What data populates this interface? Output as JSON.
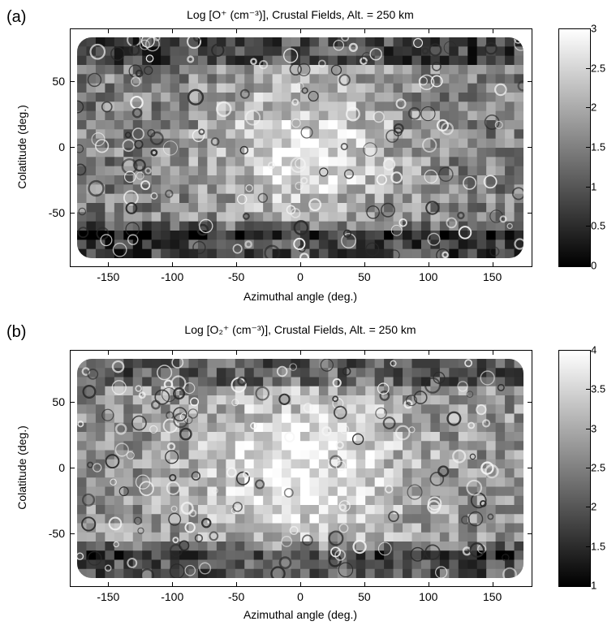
{
  "chart_data": [
    {
      "type": "heatmap",
      "panel_label": "(a)",
      "title": "Log [O⁺ (cm⁻³)], Crustal Fields, Alt. = 250 km",
      "xlabel": "Azimuthal angle (deg.)",
      "ylabel": "Colatitude (deg.)",
      "xlim": [
        -180,
        180
      ],
      "ylim": [
        -90,
        90
      ],
      "x_ticks": [
        -150,
        -100,
        -50,
        0,
        50,
        100,
        150
      ],
      "y_ticks": [
        50,
        0,
        -50
      ],
      "colorbar": {
        "min": 0,
        "max": 3,
        "ticks": [
          "3",
          "2.5",
          "2",
          "1.5",
          "1",
          "0.5",
          "0"
        ],
        "colormap": "gray"
      }
    },
    {
      "type": "heatmap",
      "panel_label": "(b)",
      "title": "Log [O₂⁺ (cm⁻³)], Crustal Fields, Alt. = 250 km",
      "xlabel": "Azimuthal angle (deg.)",
      "ylabel": "Colatitude (deg.)",
      "xlim": [
        -180,
        180
      ],
      "ylim": [
        -90,
        90
      ],
      "x_ticks": [
        -150,
        -100,
        -50,
        0,
        50,
        100,
        150
      ],
      "y_ticks": [
        50,
        0,
        -50
      ],
      "colorbar": {
        "min": 1,
        "max": 4,
        "ticks": [
          "4",
          "3.5",
          "3",
          "2.5",
          "2",
          "1.5",
          "1"
        ],
        "colormap": "gray"
      }
    }
  ]
}
